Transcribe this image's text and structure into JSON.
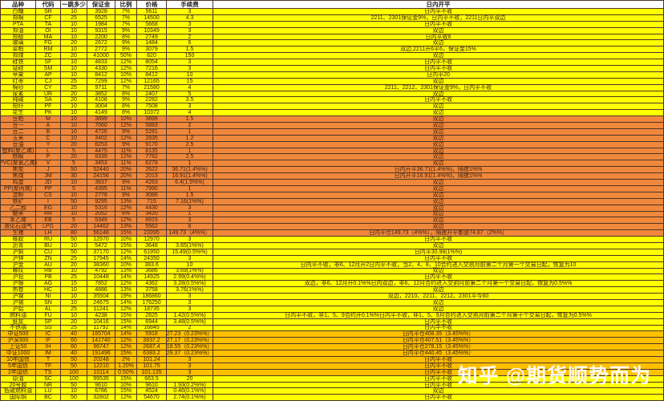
{
  "table": {
    "columns": [
      "品种",
      "代码",
      "一跳多少",
      "保证金",
      "比例",
      "价格",
      "手续费",
      "日内开平"
    ],
    "row_fields": [
      "name",
      "code",
      "tick",
      "margin",
      "ratio",
      "price",
      "fee",
      "note",
      "color"
    ],
    "rows": [
      [
        "白糖",
        "SR",
        "10",
        "3928",
        "7%",
        "5611",
        "3",
        "日内平不收",
        "yellow"
      ],
      [
        "郑棉",
        "CF",
        "25",
        "6525",
        "7%",
        "14500",
        "4.3",
        "2211、2301保证金9%，日内平不收，2211日内平双边",
        "yellow"
      ],
      [
        "PTA",
        "TA",
        "10",
        "1984",
        "7%",
        "5668",
        "3",
        "日内平不收",
        "yellow"
      ],
      [
        "郑油",
        "OI",
        "10",
        "9315",
        "9%",
        "10349",
        "3",
        "双边",
        "yellow"
      ],
      [
        "郑醇",
        "MA",
        "10",
        "2200",
        "8%",
        "2749",
        "2",
        "日内平收6",
        "yellow"
      ],
      [
        "玻璃",
        "FG",
        "20",
        "2672",
        "9%",
        "1484",
        "6",
        "双边",
        "yellow"
      ],
      [
        "菜粕",
        "RM",
        "10",
        "2772",
        "9%",
        "3079",
        "1.5",
        "双边,2211开6平6，保证金15%",
        "yellow"
      ],
      [
        "郑煤",
        "ZC",
        "20",
        "41000",
        "50%",
        "820",
        "150",
        "双边",
        "yellow"
      ],
      [
        "硅铁",
        "SF",
        "10",
        "4833",
        "12%",
        "8054",
        "3",
        "日内平不收",
        "yellow"
      ],
      [
        "锰硅",
        "SM",
        "10",
        "4330",
        "12%",
        "7216",
        "3",
        "日内平不收",
        "yellow"
      ],
      [
        "苹果",
        "AP",
        "10",
        "8412",
        "10%",
        "8412",
        "10",
        "日内平20",
        "yellow"
      ],
      [
        "红枣",
        "CJ",
        "25",
        "7299",
        "12%",
        "12165",
        "15",
        "双边",
        "yellow"
      ],
      [
        "棉纱",
        "CY",
        "25",
        "9711",
        "7%",
        "21580",
        "4",
        "2211、2212、2301保证金9%，日内平不收",
        "yellow"
      ],
      [
        "尿素",
        "UR",
        "20",
        "3852",
        "8%",
        "2407",
        "5",
        "双边",
        "yellow"
      ],
      [
        "纯碱",
        "SA",
        "20",
        "4108",
        "9%",
        "2282",
        "3.5",
        "日内平不收",
        "yellow"
      ],
      [
        "短纤",
        "PF",
        "10",
        "3004",
        "8%",
        "7508",
        "3",
        "双边",
        "yellow"
      ],
      [
        "花生",
        "PK",
        "10",
        "4149",
        "8%",
        "10372",
        "4",
        "双边",
        "yellow"
      ],
      [
        "豆粕",
        "M",
        "10",
        "3899",
        "10%",
        "3899",
        "1.5",
        "双边",
        "orange"
      ],
      [
        "豆一",
        "A",
        "10",
        "7060",
        "12%",
        "5883",
        "2",
        "双边",
        "orange"
      ],
      [
        "豆二",
        "B",
        "10",
        "4726",
        "9%",
        "5281",
        "1",
        "双边",
        "orange"
      ],
      [
        "玉米",
        "C",
        "10",
        "3402",
        "12%",
        "2835",
        "1.2",
        "双边",
        "orange"
      ],
      [
        "豆油",
        "Y",
        "20",
        "8253",
        "9%",
        "9170",
        "2.5",
        "双边",
        "orange"
      ],
      [
        "塑料(聚乙烯)",
        "L",
        "5",
        "4475",
        "11%",
        "8135",
        "1",
        "双边",
        "orange"
      ],
      [
        "棕榈",
        "P",
        "20",
        "9339",
        "12%",
        "7782",
        "2.5",
        "双边",
        "orange"
      ],
      [
        "PVC(聚氯乙烯)",
        "V",
        "5",
        "3453",
        "11%",
        "6278",
        "1",
        "双边",
        "orange"
      ],
      [
        "焦炭",
        "J",
        "50",
        "52440",
        "20%",
        "2622",
        "36.71(1.4%%)",
        "日内开平36.71(1.4%%)，隔夜1%%",
        "orange"
      ],
      [
        "焦煤",
        "JM",
        "30",
        "24156",
        "20%",
        "2013",
        "16.91(1.4%%)",
        "日内开平16.91(1.4%%)，隔夜1%%",
        "orange"
      ],
      [
        "鸡蛋",
        "JD",
        "10",
        "3837",
        "9%",
        "4263",
        "6.4(1.5%%)",
        "双边",
        "orange"
      ],
      [
        "PP(聚丙烯)",
        "PP",
        "5",
        "4395",
        "11%",
        "7990",
        "1",
        "双边",
        "orange"
      ],
      [
        "淀粉",
        "CS",
        "10",
        "2778",
        "9%",
        "3086",
        "1.5",
        "双边",
        "orange"
      ],
      [
        "铁矿",
        "I",
        "50",
        "9295",
        "13%",
        "715",
        "7.16(1%%)",
        "双边",
        "orange"
      ],
      [
        "乙二醇",
        "EG",
        "10",
        "5316",
        "12%",
        "4430",
        "3",
        "双边",
        "orange"
      ],
      [
        "粳米",
        "RR",
        "10",
        "2052",
        "6%",
        "3420",
        "1",
        "双边",
        "orange"
      ],
      [
        "苯乙烯",
        "EB",
        "5",
        "5349",
        "12%",
        "8915",
        "3",
        "双边",
        "orange"
      ],
      [
        "液化石油气",
        "LPG",
        "20",
        "14462",
        "13%",
        "5562",
        "6",
        "双边",
        "orange"
      ],
      [
        "生猪",
        "LH",
        "80",
        "56148",
        "15%",
        "23395",
        "149.73（4%%）",
        "日内平仓149.73（4%%），隔夜开平都是74.87（2%%）",
        "orange"
      ],
      [
        "橡胶",
        "RU",
        "50",
        "12970",
        "10%",
        "12970",
        "3",
        "日内平不收",
        "yellow"
      ],
      [
        "沥青",
        "BU",
        "10",
        "5472",
        "15%",
        "3648",
        "3.65(1%%)",
        "双边",
        "yellow"
      ],
      [
        "沪铜",
        "CU",
        "50",
        "37170",
        "12%",
        "61950",
        "15.49(0.5%%)",
        "日内平30.98(1%%)",
        "yellow"
      ],
      [
        "沪锌",
        "ZN",
        "25",
        "17945",
        "14%",
        "24350",
        "3",
        "日内平不收",
        "yellow"
      ],
      [
        "沪金",
        "AU",
        "20",
        "38360",
        "10%",
        "383.6",
        "10",
        "日内平不收，非6、12月开2日内平不收，当2、4、8、10合约进入交割月前第二个月第一个交易日起，恢复为10",
        "yellow"
      ],
      [
        "螺纹",
        "RB",
        "10",
        "4792",
        "13%",
        "3686",
        "3.69(1%%)",
        "双边",
        "yellow"
      ],
      [
        "沪铅",
        "PB",
        "25",
        "10448",
        "14%",
        "14925",
        "2.99(0.4%%)",
        "日内平不收",
        "yellow"
      ],
      [
        "沪银",
        "AG",
        "15",
        "7852",
        "12%",
        "4362",
        "3.28(0.5%%)",
        "双边，非6、12月开0.1%%日内双边，非6、12月合约进入交割月前第二个月第一个交易日起，恢复为0.5%%",
        "yellow"
      ],
      [
        "热卷",
        "HC",
        "10",
        "4886",
        "13%",
        "3758",
        "3.76(1%%)",
        "双边",
        "yellow"
      ],
      [
        "沪镍",
        "NI",
        "10",
        "35504",
        "19%",
        "186860",
        "3",
        "双边，2210、2211、2212、2301平今60",
        "yellow"
      ],
      [
        "沪锡",
        "SN",
        "10",
        "24675",
        "14%",
        "176250",
        "3",
        "双边",
        "yellow"
      ],
      [
        "沪铝",
        "AL",
        "25",
        "11241",
        "12%",
        "18735",
        "3",
        "双边",
        "yellow"
      ],
      [
        "燃料油",
        "FU",
        "10",
        "4238",
        "15%",
        "2825",
        "1.42(0.5%%)",
        "日内平不收，非1、5、9合约开0.1%%日内平不收，非1、5、9月合约进入交割月前第二个月第十个交易日起，恢复为0.5%%",
        "yellow"
      ],
      [
        "纸浆",
        "SP",
        "20",
        "10416",
        "15%",
        "6944",
        "3.48(0.5%%)",
        "日内平不收",
        "yellow"
      ],
      [
        "不锈钢",
        "SS",
        "25",
        "11792",
        "14%",
        "16845",
        "2",
        "日内平不收",
        "yellow"
      ],
      [
        "中证500",
        "IC",
        "40",
        "165704",
        "14%",
        "5918",
        "27.23（0.23%%）",
        "日内平仓408.35（3.45%%）",
        "gold"
      ],
      [
        "沪深300",
        "IF",
        "60",
        "141740",
        "12%",
        "3937.2",
        "27.17（0.23%%）",
        "日内平仓407.51（3.45%%）",
        "gold"
      ],
      [
        "上证50",
        "IH",
        "60",
        "96747",
        "12%",
        "2687.4",
        "18.55（0.23%%）",
        "日内平仓278.15（3.45%%）",
        "gold"
      ],
      [
        "中证1000",
        "IM",
        "40",
        "191496",
        "15%",
        "6383.2",
        "29.37（0.23%%）",
        "日内平仓440.45（3.45%%）",
        "gold"
      ],
      [
        "10年国债",
        "T",
        "50",
        "20248",
        "2%",
        "101.24",
        "3",
        "日内平不收",
        "gold"
      ],
      [
        "5年国债",
        "TF",
        "50",
        "12210",
        "1.20%",
        "101.75",
        "3",
        "日内平不收",
        "gold"
      ],
      [
        "2年国债",
        "TS",
        "100",
        "10114",
        "0.50%",
        "101.135",
        "3",
        "日内平不收",
        "gold"
      ],
      [
        "原油",
        "SC",
        "100",
        "99535",
        "15%",
        "663.5",
        "20",
        "日内平不收",
        "yellow"
      ],
      [
        "20号胶",
        "NR",
        "50",
        "9610",
        "10%",
        "9610",
        "1.93(0.2%%)",
        "日内平不收",
        "yellow"
      ],
      [
        "低硫燃料油",
        "LU",
        "10",
        "6786",
        "15%",
        "4524",
        "0.46(0.1%%)",
        "双边",
        "yellow"
      ],
      [
        "国际铜",
        "BC",
        "50",
        "32802",
        "12%",
        "54670",
        "2.74(0.1%%)",
        "日内平不收",
        "yellow"
      ]
    ]
  },
  "watermark": {
    "text": "知乎 @期货顺势而为",
    "color": "#FFFFFF"
  },
  "colors": {
    "yellow": "#FFFF00",
    "orange": "#F0883C",
    "gold": "#FFC000",
    "header": "#FFFFFF",
    "grid": "#4D3526",
    "ink": "#40210A"
  }
}
